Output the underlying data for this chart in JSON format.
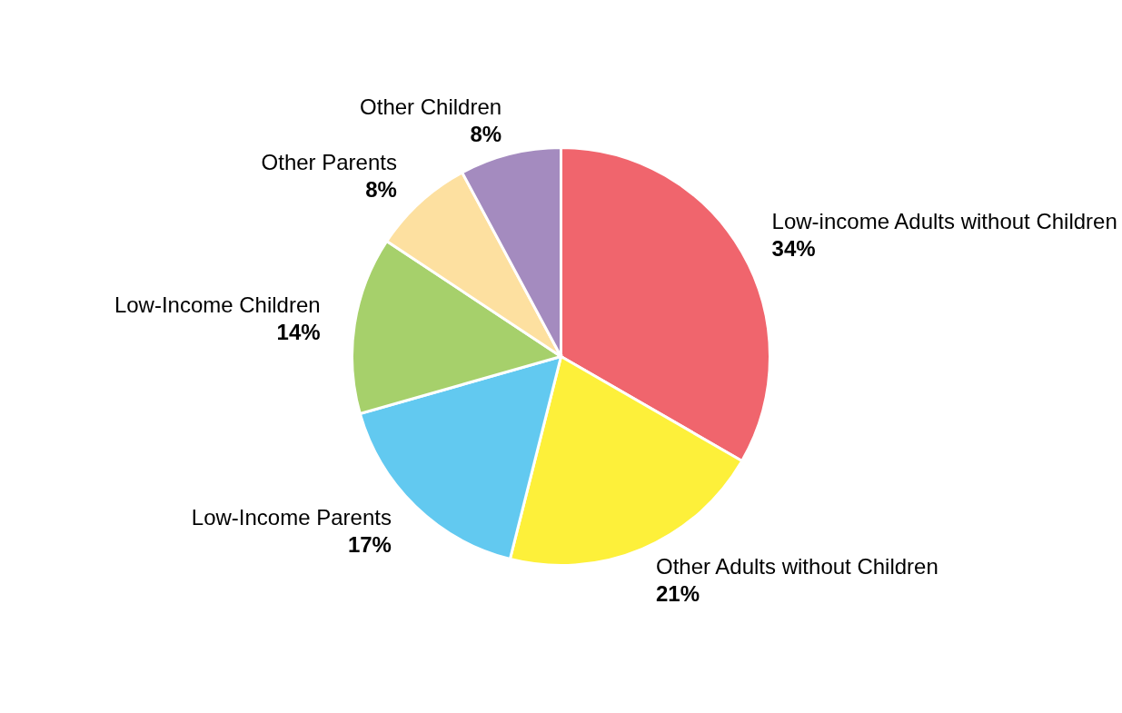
{
  "chart_data": {
    "type": "pie",
    "categories": [
      "Low-income Adults without Children",
      "Other Adults without Children",
      "Low-Income Parents",
      "Low-Income Children",
      "Other Parents",
      "Other Children"
    ],
    "values": [
      34,
      21,
      17,
      14,
      8,
      8
    ],
    "value_labels": [
      "34%",
      "21%",
      "17%",
      "14%",
      "8%",
      "8%"
    ],
    "colors": [
      "#f0656d",
      "#fdf03a",
      "#62c9f0",
      "#a6d06b",
      "#fde0a0",
      "#a48bbf"
    ]
  }
}
